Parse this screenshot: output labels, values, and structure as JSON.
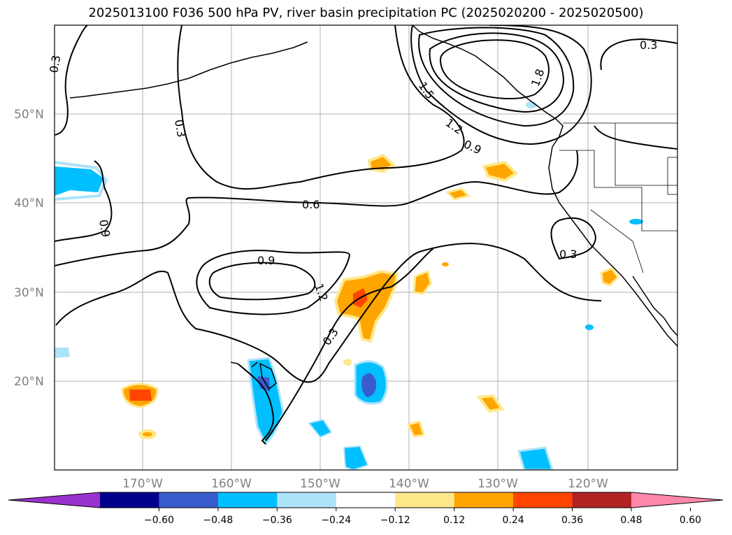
{
  "title": "2025013100 F036 500 hPa PV, river basin precipitation PC (2025020200 - 2025020500)",
  "lat_labels": [
    "50°N",
    "40°N",
    "30°N",
    "20°N"
  ],
  "lon_labels": [
    "170°W",
    "160°W",
    "150°W",
    "140°W",
    "130°W",
    "120°W"
  ],
  "contour_labels": [
    "0.3",
    "0.3",
    "0.9",
    "0.6",
    "0.9",
    "1.2",
    "0.3",
    "1.5",
    "1.2",
    "0.9",
    "1.8",
    "0.3",
    "0.3"
  ],
  "colorbar": {
    "ticks": [
      "−0.60",
      "−0.48",
      "−0.36",
      "−0.24",
      "−0.12",
      "0.12",
      "0.24",
      "0.36",
      "0.48",
      "0.60"
    ],
    "colors": [
      "#9932CC",
      "#00008B",
      "#3A5BCC",
      "#00BFFF",
      "#ADE3F8",
      "#FFFFFF",
      "#FFE88A",
      "#FFA500",
      "#FF4500",
      "#B22222",
      "#FF88AA"
    ]
  }
}
